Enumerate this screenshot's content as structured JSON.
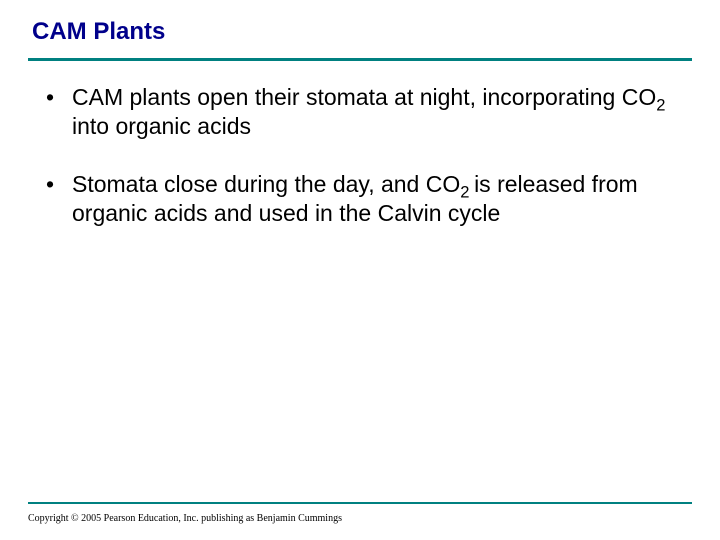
{
  "title": "CAM Plants",
  "title_color": "#00008b",
  "rule_color": "#008080",
  "background_color": "#ffffff",
  "text_color": "#000000",
  "title_fontsize": 24,
  "bullet_fontsize": 23,
  "copyright_fontsize": 10,
  "bullets": [
    {
      "pre": "CAM plants open their stomata at night, incorporating CO",
      "sub": "2",
      "post": " into organic acids"
    },
    {
      "pre": "Stomata close during the day, and CO",
      "sub": "2 ",
      "post": "is released from organic acids and used in the Calvin cycle"
    }
  ],
  "copyright": "Copyright © 2005 Pearson Education, Inc. publishing as Benjamin Cummings"
}
